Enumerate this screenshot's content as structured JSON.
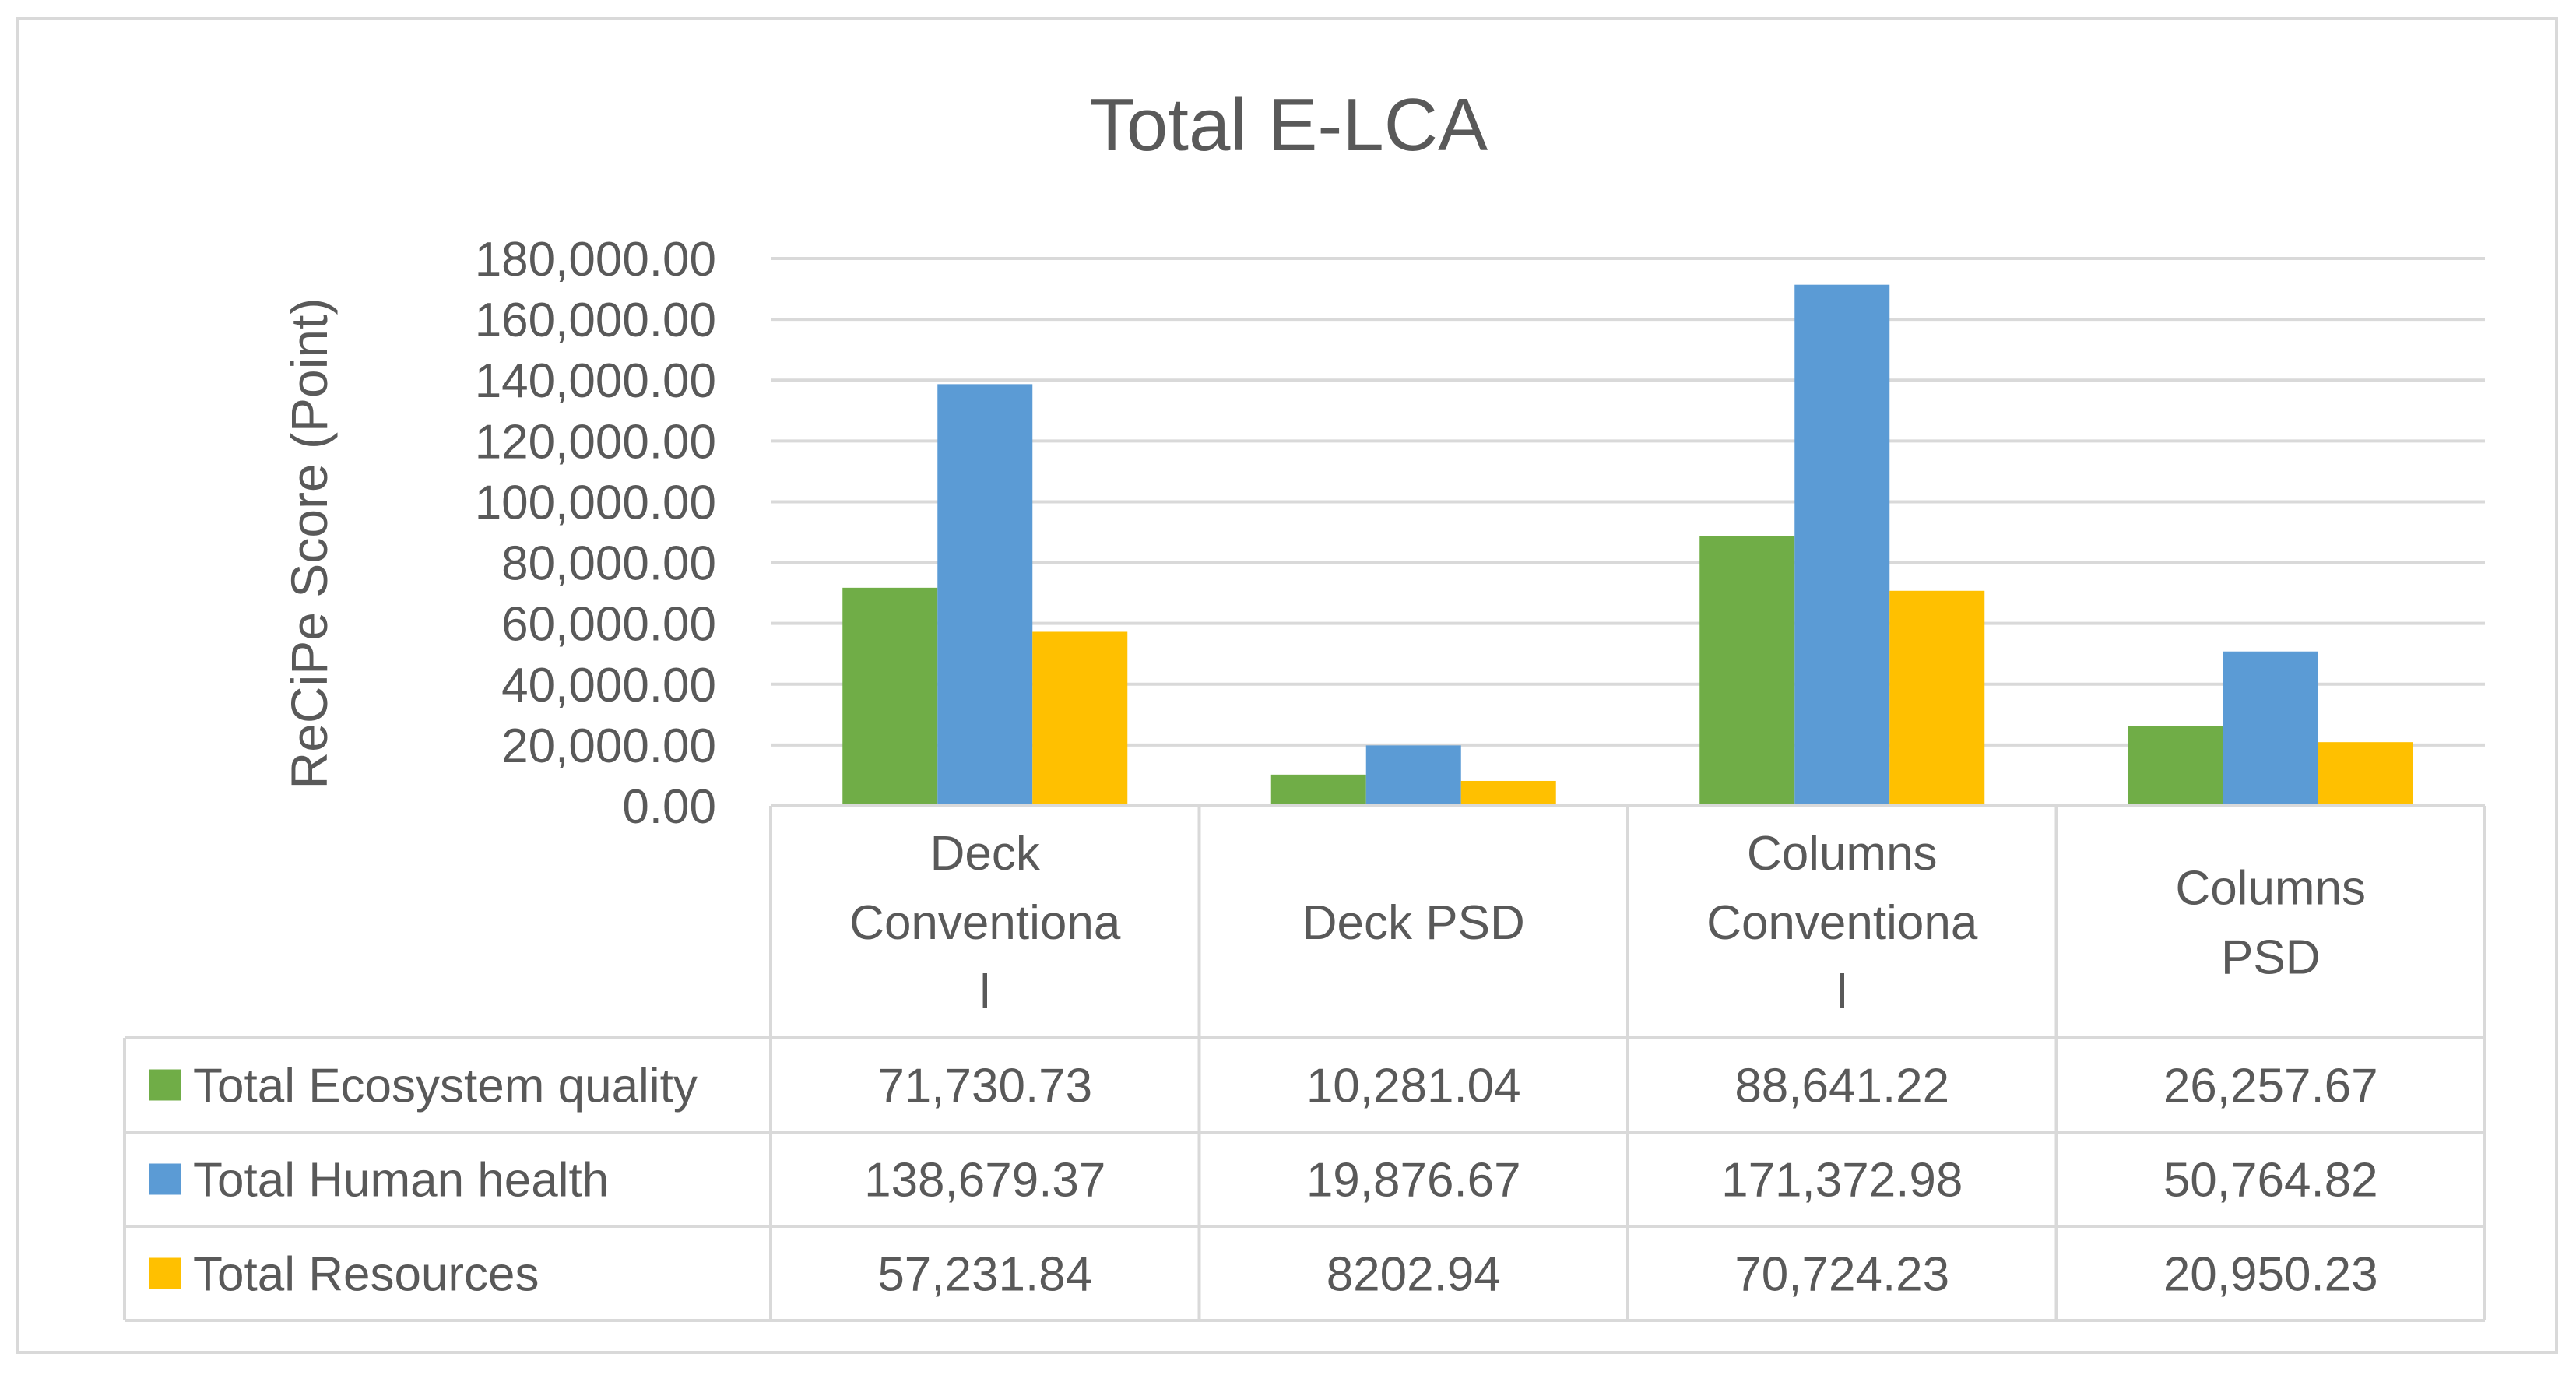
{
  "chart_data": {
    "type": "bar",
    "title": "Total E-LCA",
    "xlabel": "",
    "ylabel": "ReCiPe Score (Point)",
    "ylim": [
      0,
      180000
    ],
    "y_ticks": [
      0,
      20000,
      40000,
      60000,
      80000,
      100000,
      120000,
      140000,
      160000,
      180000
    ],
    "y_tick_labels": [
      "0.00",
      "20,000.00",
      "40,000.00",
      "60,000.00",
      "80,000.00",
      "100,000.00",
      "120,000.00",
      "140,000.00",
      "160,000.00",
      "180,000.00"
    ],
    "grid": true,
    "legend": "data-table",
    "categories": [
      "Deck Conventional",
      "Deck PSD",
      "Columns Conventional",
      "Columns PSD"
    ],
    "category_label_lines": [
      [
        "Deck",
        "Conventiona",
        "l"
      ],
      [
        "Deck PSD"
      ],
      [
        "Columns",
        "Conventiona",
        "l"
      ],
      [
        "Columns",
        "PSD"
      ]
    ],
    "series": [
      {
        "name": "Total Ecosystem quality",
        "color": "#70AD47",
        "values": [
          71730.73,
          10281.04,
          88641.22,
          26257.67
        ],
        "labels": [
          "71,730.73",
          "10,281.04",
          "88,641.22",
          "26,257.67"
        ]
      },
      {
        "name": "Total Human health",
        "color": "#5B9BD5",
        "values": [
          138679.37,
          19876.67,
          171372.98,
          50764.82
        ],
        "labels": [
          "138,679.37",
          "19,876.67",
          "171,372.98",
          "50,764.82"
        ]
      },
      {
        "name": "Total Resources",
        "color": "#FFC000",
        "values": [
          57231.84,
          8202.94,
          70724.23,
          20950.23
        ],
        "labels": [
          "57,231.84",
          "8202.94",
          "70,724.23",
          "20,950.23"
        ]
      }
    ]
  }
}
